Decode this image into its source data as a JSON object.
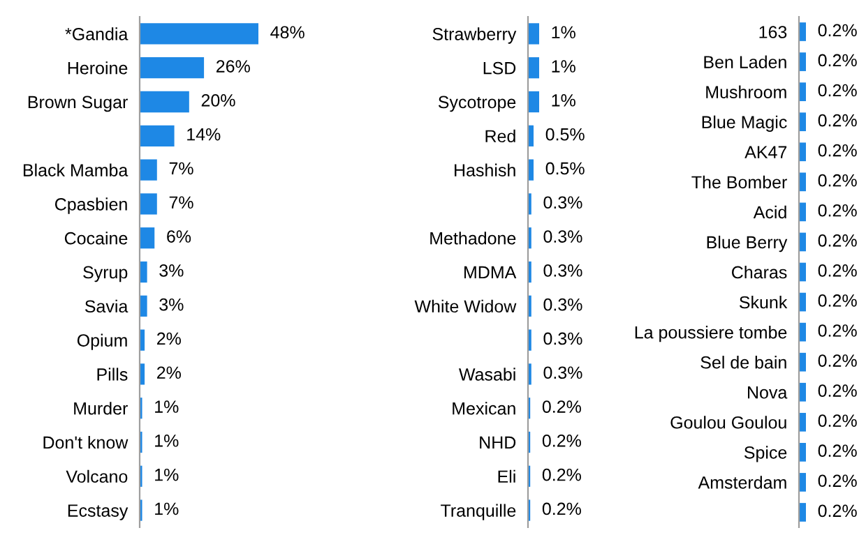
{
  "chart_data": [
    {
      "type": "bar",
      "orientation": "horizontal",
      "color": "#1e88e5",
      "categories": [
        "*Gandia",
        "Heroine",
        "Brown Sugar",
        null,
        "Black Mamba",
        "Cpasbien",
        "Cocaine",
        "Syrup",
        "Savia",
        "Opium",
        "Pills",
        "Murder",
        "Don't know",
        "Volcano",
        "Ecstasy"
      ],
      "values": [
        48,
        26,
        20,
        14,
        7,
        7,
        6,
        3,
        3,
        2,
        2,
        1,
        1,
        1,
        1
      ],
      "value_labels": [
        "48%",
        "26%",
        "20%",
        "14%",
        "7%",
        "7%",
        "6%",
        "3%",
        "3%",
        "2%",
        "2%",
        "1%",
        "1%",
        "1%",
        "1%"
      ]
    },
    {
      "type": "bar",
      "orientation": "horizontal",
      "color": "#1e88e5",
      "categories": [
        "Strawberry",
        "LSD",
        "Sycotrope",
        "Red",
        "Hashish",
        null,
        "Methadone",
        "MDMA",
        "White Widow",
        null,
        "Wasabi",
        "Mexican",
        "NHD",
        "Eli",
        "Tranquille"
      ],
      "values": [
        1,
        1,
        1,
        0.5,
        0.5,
        0.3,
        0.3,
        0.3,
        0.3,
        0.3,
        0.3,
        0.2,
        0.2,
        0.2,
        0.2
      ],
      "value_labels": [
        "1%",
        "1%",
        "1%",
        "0.5%",
        "0.5%",
        "0.3%",
        "0.3%",
        "0.3%",
        "0.3%",
        "0.3%",
        "0.3%",
        "0.2%",
        "0.2%",
        "0.2%",
        "0.2%"
      ]
    },
    {
      "type": "bar",
      "orientation": "horizontal",
      "color": "#1e88e5",
      "categories": [
        "163",
        "Ben Laden",
        "Mushroom",
        "Blue Magic",
        "AK47",
        "The Bomber",
        "Acid",
        "Blue Berry",
        "Charas",
        "Skunk",
        "La poussiere tombe",
        "Sel de bain",
        "Nova",
        "Goulou Goulou",
        "Spice",
        "Amsterdam",
        null
      ],
      "values": [
        0.2,
        0.2,
        0.2,
        0.2,
        0.2,
        0.2,
        0.2,
        0.2,
        0.2,
        0.2,
        0.2,
        0.2,
        0.2,
        0.2,
        0.2,
        0.2,
        0.2
      ],
      "value_labels": [
        "0.2%",
        "0.2%",
        "0.2%",
        "0.2%",
        "0.2%",
        "0.2%",
        "0.2%",
        "0.2%",
        "0.2%",
        "0.2%",
        "0.2%",
        "0.2%",
        "0.2%",
        "0.2%",
        "0.2%",
        "0.2%",
        "0.2%"
      ]
    }
  ]
}
